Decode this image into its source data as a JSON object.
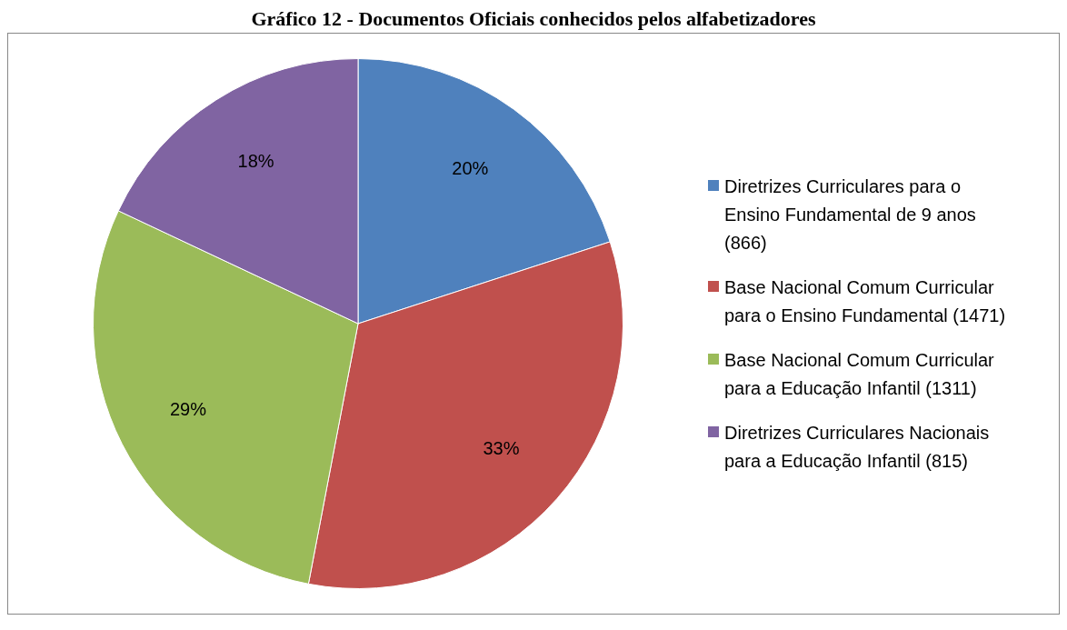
{
  "chart_data": {
    "type": "pie",
    "title": "Gráfico 12 - Documentos Oficiais conhecidos pelos alfabetizadores",
    "categories": [
      "Diretrizes Curriculares para o Ensino Fundamental de 9 anos (866)",
      "Base Nacional Comum Curricular para o Ensino Fundamental (1471)",
      "Base Nacional Comum Curricular para a Educação Infantil (1311)",
      "Diretrizes Curriculares Nacionais para a Educação Infantil (815)"
    ],
    "values": [
      20,
      33,
      29,
      18
    ],
    "value_labels": [
      "20%",
      "33%",
      "29%",
      "18%"
    ],
    "colors": [
      "#4f81bd",
      "#c0504d",
      "#9bbb59",
      "#8064a2"
    ],
    "legend": "right"
  }
}
